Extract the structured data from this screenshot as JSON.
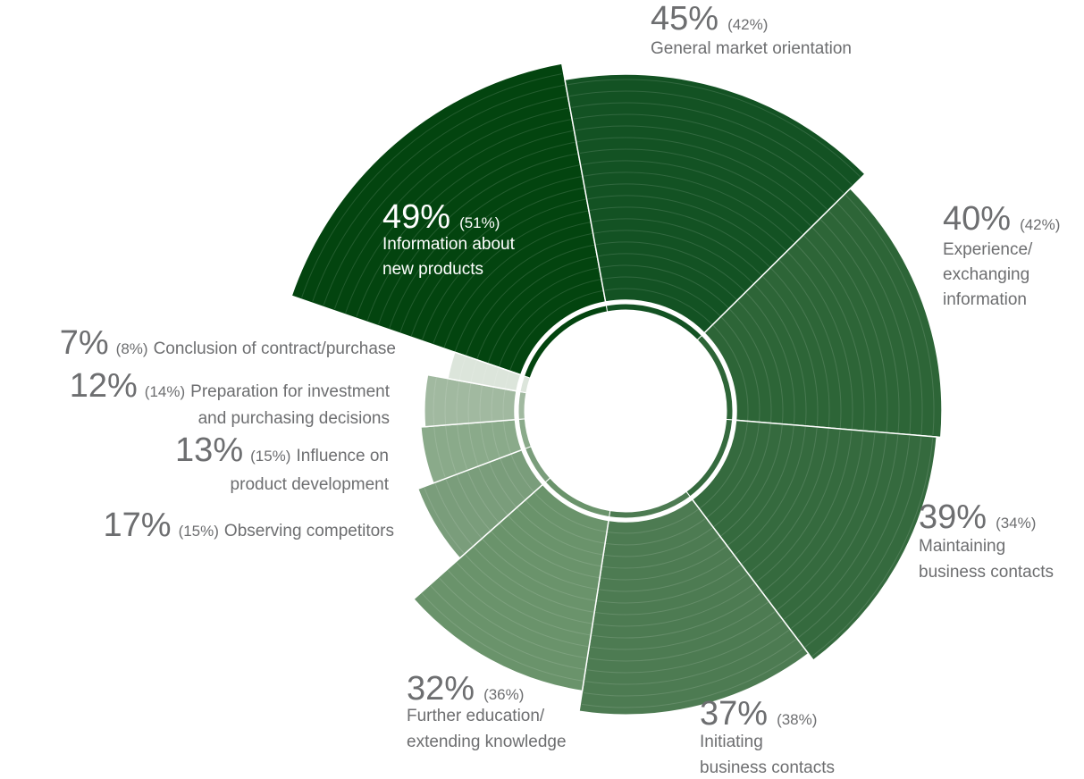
{
  "chart_data": {
    "type": "polar",
    "values": [
      49,
      45,
      40,
      39,
      37,
      32,
      17,
      13,
      12,
      7
    ],
    "value_labels": [
      "49%",
      "45%",
      "40%",
      "39%",
      "37%",
      "32%",
      "17%",
      "13%",
      "12%",
      "7%"
    ],
    "previous_values": [
      51,
      42,
      42,
      34,
      38,
      36,
      15,
      15,
      14,
      8
    ],
    "previous_labels": [
      "(51%)",
      "(42%)",
      "(42%)",
      "(34%)",
      "(38%)",
      "(36%)",
      "(15%)",
      "(15%)",
      "(14%)",
      "(8%)"
    ],
    "label_lines": [
      [
        "Information about",
        "new products"
      ],
      [
        "General market orientation"
      ],
      [
        "Experience/",
        "exchanging",
        "information"
      ],
      [
        "Maintaining",
        "business contacts"
      ],
      [
        "Initiating",
        "business contacts"
      ],
      [
        "Further education/",
        "extending knowledge"
      ],
      [
        "Observing competitors"
      ],
      [
        "Influence on",
        "product development"
      ],
      [
        "Preparation for investment",
        "and purchasing decisions"
      ],
      [
        "Conclusion of contract/purchase"
      ]
    ],
    "colors": [
      "#03440f",
      "#135223",
      "#2d6537",
      "#356a3e",
      "#4d7b52",
      "#6a936b",
      "#7a9d7b",
      "#8aaa8a",
      "#a1b9a0",
      "#dce5db"
    ]
  }
}
